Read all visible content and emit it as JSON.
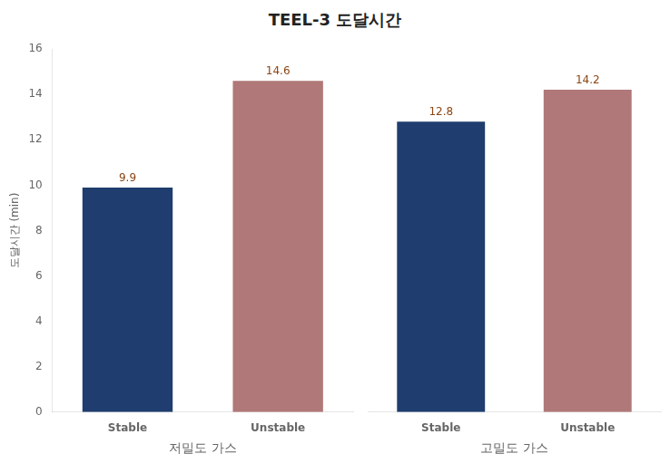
{
  "chart_data": [
    {
      "type": "bar",
      "title": "TEEL-3  도달시간",
      "ylabel": "도달시간 (min)",
      "xlabel": "저밀도 가스",
      "categories": [
        "Stable",
        "Unstable"
      ],
      "values": [
        9.9,
        14.6
      ],
      "colors": [
        "#1F3D6E",
        "#B07878"
      ],
      "ylim": [
        0,
        16
      ],
      "yticks": [
        0,
        2,
        4,
        6,
        8,
        10,
        12,
        14,
        16
      ],
      "grid": false,
      "data_labels": true
    },
    {
      "type": "bar",
      "xlabel": "고밀도 가스",
      "categories": [
        "Stable",
        "Unstable"
      ],
      "values": [
        12.8,
        14.2
      ],
      "colors": [
        "#1F3D6E",
        "#B07878"
      ],
      "ylim": [
        0,
        16
      ],
      "yticks": [
        0,
        2,
        4,
        6,
        8,
        10,
        12,
        14,
        16
      ],
      "grid": false,
      "data_labels": true,
      "tick_labels": "x"
    }
  ]
}
